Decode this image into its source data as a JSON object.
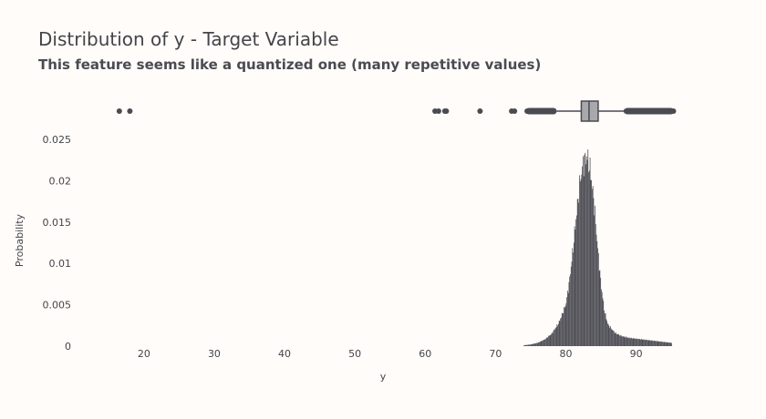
{
  "header": {
    "title": "Distribution of y - Target Variable",
    "subtitle": "This feature seems like a quantized one (many repetitive values)"
  },
  "colors": {
    "background": "#fffcf9",
    "bars": "#4a4a52",
    "box_fill": "#a9a9ad",
    "text": "#444449"
  },
  "chart_data": [
    {
      "type": "bar",
      "subtype": "histogram",
      "xlabel": "y",
      "ylabel": "Probability",
      "xlim": [
        12.5,
        95.5
      ],
      "ylim": [
        0,
        0.026
      ],
      "x_ticks": [
        20,
        30,
        40,
        50,
        60,
        70,
        80,
        90
      ],
      "y_ticks": [
        0,
        0.005,
        0.01,
        0.015,
        0.02,
        0.025
      ],
      "y_tick_labels": [
        "0",
        "0.005",
        "0.01",
        "0.015",
        "0.02",
        "0.025"
      ],
      "grid": false,
      "x": [
        74,
        75,
        76,
        77,
        78,
        79,
        80,
        80.5,
        81,
        81.5,
        82,
        82.5,
        83,
        83.5,
        84,
        84.5,
        85,
        85.5,
        86,
        87,
        88,
        89,
        90,
        91,
        92,
        93,
        94,
        95
      ],
      "values": [
        0.0001,
        0.0002,
        0.0004,
        0.0008,
        0.0015,
        0.0028,
        0.005,
        0.0078,
        0.0115,
        0.0158,
        0.0198,
        0.0222,
        0.023,
        0.0212,
        0.0175,
        0.0122,
        0.0075,
        0.0042,
        0.0026,
        0.0016,
        0.0012,
        0.001,
        0.0009,
        0.0008,
        0.0007,
        0.0006,
        0.0005,
        0.0004
      ]
    },
    {
      "type": "box",
      "orientation": "horizontal",
      "xlim": [
        12.5,
        95.5
      ],
      "q1": 82.2,
      "median": 83.3,
      "q3": 84.6,
      "whisker_low": 78.7,
      "whisker_high": 88.3,
      "outliers": [
        16.5,
        18,
        61.4,
        61.9,
        62.8,
        63.0,
        67.8,
        72.3,
        72.7,
        74.5,
        75.2,
        76.0,
        76.8,
        77.5,
        78.0,
        88.6,
        89.2,
        90.0,
        90.8,
        91.6,
        92.4,
        93.2,
        94.0,
        94.8,
        95.3
      ]
    }
  ]
}
